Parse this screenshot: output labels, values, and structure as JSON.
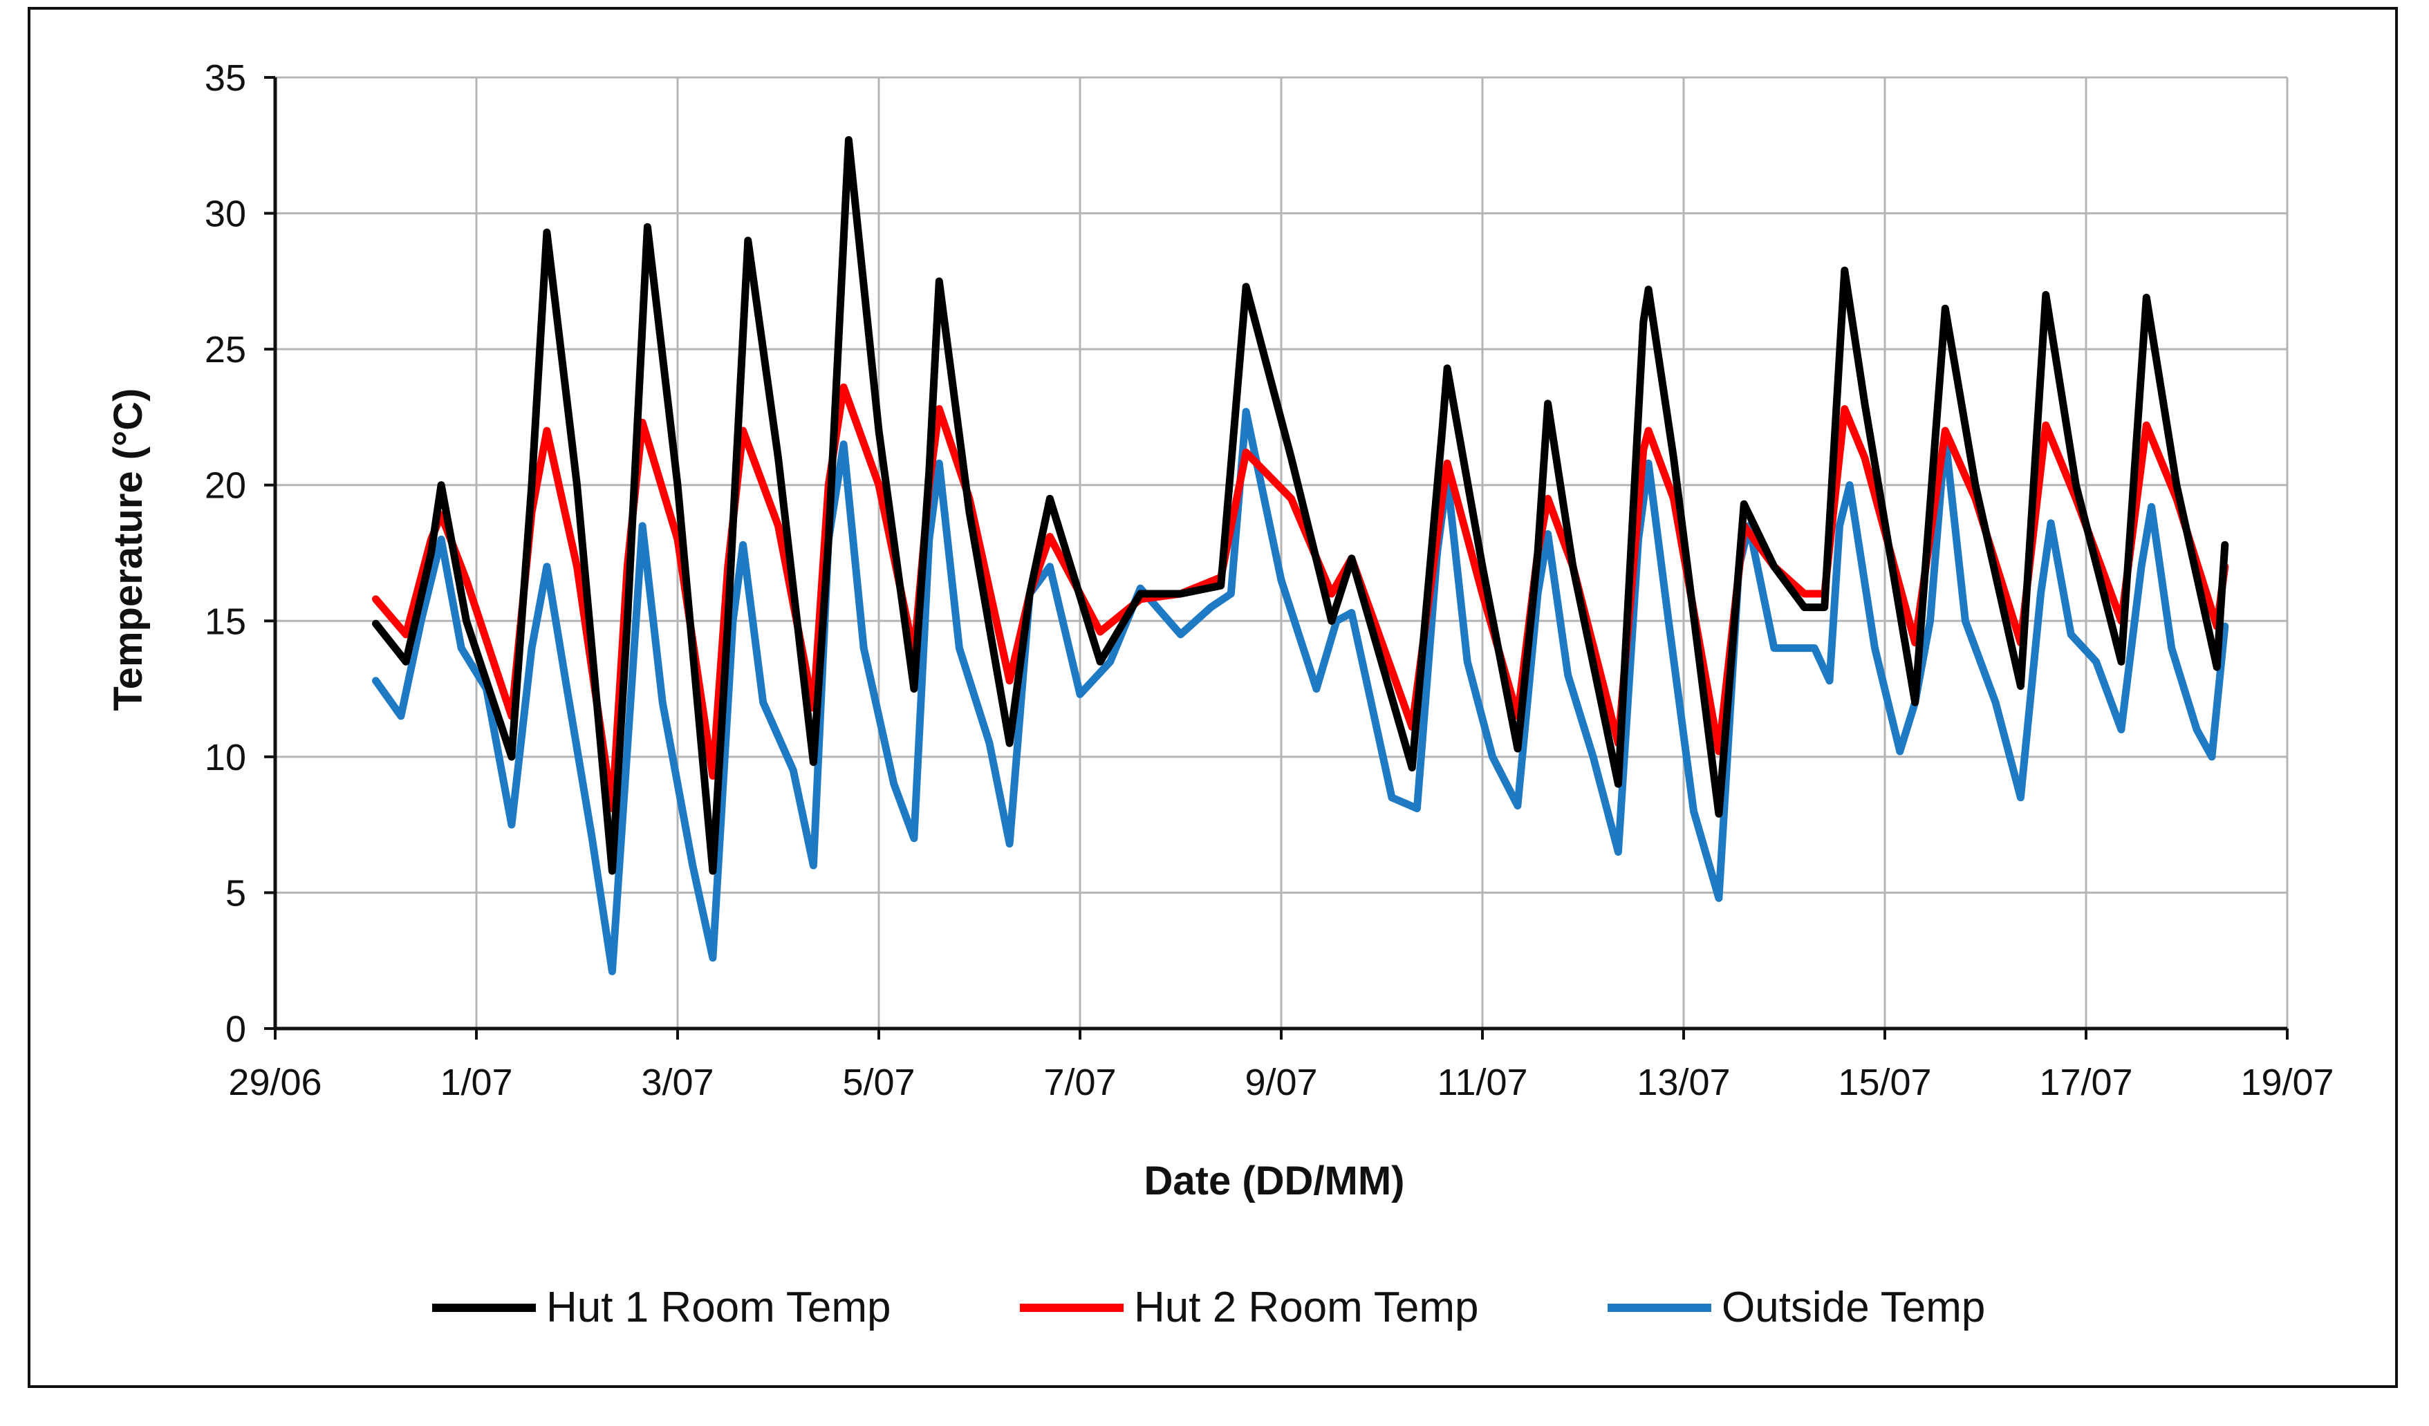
{
  "chart_data": {
    "type": "line",
    "xlabel": "Date (DD/MM)",
    "ylabel": "Temperature (°C)",
    "ylim": [
      0,
      35
    ],
    "yticks": [
      0,
      5,
      10,
      15,
      20,
      25,
      30,
      35
    ],
    "xlim": [
      0,
      20
    ],
    "xticks": [
      {
        "t": 0,
        "label": "29/06"
      },
      {
        "t": 2,
        "label": "1/07"
      },
      {
        "t": 4,
        "label": "3/07"
      },
      {
        "t": 6,
        "label": "5/07"
      },
      {
        "t": 8,
        "label": "7/07"
      },
      {
        "t": 10,
        "label": "9/07"
      },
      {
        "t": 12,
        "label": "11/07"
      },
      {
        "t": 14,
        "label": "13/07"
      },
      {
        "t": 16,
        "label": "15/07"
      },
      {
        "t": 18,
        "label": "17/07"
      },
      {
        "t": 20,
        "label": "19/07"
      }
    ],
    "grid": true,
    "legend_position": "bottom",
    "x_units": "days since 29/06",
    "series": [
      {
        "name": "Hut 1 Room Temp",
        "color": "#000000",
        "points": [
          [
            1.0,
            14.9
          ],
          [
            1.3,
            13.5
          ],
          [
            1.55,
            17.5
          ],
          [
            1.65,
            20.0
          ],
          [
            1.9,
            15.0
          ],
          [
            2.35,
            10.0
          ],
          [
            2.55,
            20.0
          ],
          [
            2.7,
            29.3
          ],
          [
            3.0,
            20.0
          ],
          [
            3.35,
            5.8
          ],
          [
            3.5,
            15.0
          ],
          [
            3.7,
            29.5
          ],
          [
            4.0,
            20.0
          ],
          [
            4.35,
            5.8
          ],
          [
            4.5,
            15.0
          ],
          [
            4.7,
            29.0
          ],
          [
            5.0,
            21.0
          ],
          [
            5.35,
            9.8
          ],
          [
            5.5,
            18.0
          ],
          [
            5.7,
            32.7
          ],
          [
            6.0,
            22.0
          ],
          [
            6.35,
            12.5
          ],
          [
            6.5,
            20.5
          ],
          [
            6.6,
            27.5
          ],
          [
            6.9,
            19.0
          ],
          [
            7.3,
            10.5
          ],
          [
            7.5,
            16.0
          ],
          [
            7.7,
            19.5
          ],
          [
            8.2,
            13.5
          ],
          [
            8.6,
            16.0
          ],
          [
            9.0,
            16.0
          ],
          [
            9.4,
            16.3
          ],
          [
            9.65,
            27.3
          ],
          [
            10.1,
            21.0
          ],
          [
            10.5,
            15.0
          ],
          [
            10.7,
            17.3
          ],
          [
            11.3,
            9.6
          ],
          [
            11.6,
            22.0
          ],
          [
            11.65,
            24.3
          ],
          [
            12.0,
            17.0
          ],
          [
            12.35,
            10.3
          ],
          [
            12.55,
            17.5
          ],
          [
            12.65,
            23.0
          ],
          [
            12.9,
            17.0
          ],
          [
            13.35,
            9.0
          ],
          [
            13.6,
            26.0
          ],
          [
            13.65,
            27.2
          ],
          [
            13.9,
            21.0
          ],
          [
            14.35,
            7.9
          ],
          [
            14.6,
            19.3
          ],
          [
            14.9,
            17.0
          ],
          [
            15.2,
            15.5
          ],
          [
            15.4,
            15.5
          ],
          [
            15.6,
            27.9
          ],
          [
            15.8,
            23.0
          ],
          [
            16.3,
            12.0
          ],
          [
            16.6,
            26.5
          ],
          [
            16.9,
            20.0
          ],
          [
            17.35,
            12.6
          ],
          [
            17.6,
            27.0
          ],
          [
            17.9,
            20.0
          ],
          [
            18.35,
            13.5
          ],
          [
            18.6,
            26.9
          ],
          [
            18.9,
            20.0
          ],
          [
            19.3,
            13.3
          ],
          [
            19.38,
            17.8
          ]
        ]
      },
      {
        "name": "Hut 2 Room Temp",
        "color": "#ff0000",
        "points": [
          [
            1.0,
            15.8
          ],
          [
            1.3,
            14.5
          ],
          [
            1.55,
            18.0
          ],
          [
            1.65,
            18.9
          ],
          [
            1.9,
            16.5
          ],
          [
            2.35,
            11.5
          ],
          [
            2.55,
            19.0
          ],
          [
            2.7,
            22.0
          ],
          [
            3.0,
            17.0
          ],
          [
            3.35,
            8.1
          ],
          [
            3.5,
            17.0
          ],
          [
            3.65,
            22.3
          ],
          [
            4.0,
            18.0
          ],
          [
            4.35,
            9.3
          ],
          [
            4.5,
            17.0
          ],
          [
            4.65,
            22.0
          ],
          [
            5.0,
            18.5
          ],
          [
            5.35,
            11.8
          ],
          [
            5.5,
            20.0
          ],
          [
            5.65,
            23.6
          ],
          [
            6.0,
            20.0
          ],
          [
            6.35,
            13.8
          ],
          [
            6.5,
            20.0
          ],
          [
            6.6,
            22.8
          ],
          [
            6.9,
            19.5
          ],
          [
            7.3,
            12.8
          ],
          [
            7.5,
            16.0
          ],
          [
            7.7,
            18.1
          ],
          [
            8.2,
            14.6
          ],
          [
            8.6,
            15.8
          ],
          [
            9.0,
            16.0
          ],
          [
            9.4,
            16.6
          ],
          [
            9.65,
            21.2
          ],
          [
            10.1,
            19.5
          ],
          [
            10.5,
            16.0
          ],
          [
            10.7,
            17.3
          ],
          [
            11.3,
            11.1
          ],
          [
            11.6,
            19.5
          ],
          [
            11.65,
            20.8
          ],
          [
            12.0,
            16.0
          ],
          [
            12.35,
            11.5
          ],
          [
            12.55,
            17.5
          ],
          [
            12.65,
            19.5
          ],
          [
            12.9,
            17.0
          ],
          [
            13.35,
            10.5
          ],
          [
            13.6,
            21.3
          ],
          [
            13.65,
            22.0
          ],
          [
            13.9,
            19.5
          ],
          [
            14.35,
            10.2
          ],
          [
            14.6,
            18.5
          ],
          [
            14.9,
            17.0
          ],
          [
            15.2,
            16.0
          ],
          [
            15.4,
            16.0
          ],
          [
            15.6,
            22.8
          ],
          [
            15.8,
            21.0
          ],
          [
            16.3,
            14.2
          ],
          [
            16.6,
            22.0
          ],
          [
            16.9,
            19.5
          ],
          [
            17.35,
            14.2
          ],
          [
            17.6,
            22.2
          ],
          [
            17.9,
            19.5
          ],
          [
            18.35,
            15.0
          ],
          [
            18.6,
            22.2
          ],
          [
            18.9,
            19.5
          ],
          [
            19.3,
            14.8
          ],
          [
            19.38,
            17.0
          ]
        ]
      },
      {
        "name": "Outside Temp",
        "color": "#1f7ac4",
        "points": [
          [
            1.0,
            12.8
          ],
          [
            1.25,
            11.5
          ],
          [
            1.45,
            15.0
          ],
          [
            1.65,
            18.0
          ],
          [
            1.85,
            14.0
          ],
          [
            2.1,
            12.5
          ],
          [
            2.35,
            7.5
          ],
          [
            2.55,
            14.0
          ],
          [
            2.7,
            17.0
          ],
          [
            2.9,
            12.5
          ],
          [
            3.15,
            7.0
          ],
          [
            3.35,
            2.1
          ],
          [
            3.55,
            13.0
          ],
          [
            3.65,
            18.5
          ],
          [
            3.85,
            12.0
          ],
          [
            4.15,
            6.0
          ],
          [
            4.35,
            2.6
          ],
          [
            4.55,
            15.0
          ],
          [
            4.65,
            17.8
          ],
          [
            4.85,
            12.0
          ],
          [
            5.15,
            9.5
          ],
          [
            5.35,
            6.0
          ],
          [
            5.5,
            18.0
          ],
          [
            5.65,
            21.5
          ],
          [
            5.85,
            14.0
          ],
          [
            6.15,
            9.0
          ],
          [
            6.35,
            7.0
          ],
          [
            6.5,
            18.0
          ],
          [
            6.6,
            20.8
          ],
          [
            6.8,
            14.0
          ],
          [
            7.1,
            10.5
          ],
          [
            7.3,
            6.8
          ],
          [
            7.5,
            16.0
          ],
          [
            7.7,
            17.0
          ],
          [
            8.0,
            12.3
          ],
          [
            8.3,
            13.5
          ],
          [
            8.6,
            16.2
          ],
          [
            9.0,
            14.5
          ],
          [
            9.3,
            15.5
          ],
          [
            9.5,
            16.0
          ],
          [
            9.65,
            22.7
          ],
          [
            10.0,
            16.5
          ],
          [
            10.35,
            12.5
          ],
          [
            10.55,
            15.0
          ],
          [
            10.7,
            15.3
          ],
          [
            11.1,
            8.5
          ],
          [
            11.35,
            8.1
          ],
          [
            11.55,
            17.5
          ],
          [
            11.65,
            20.3
          ],
          [
            11.85,
            13.5
          ],
          [
            12.1,
            10.0
          ],
          [
            12.35,
            8.2
          ],
          [
            12.55,
            16.0
          ],
          [
            12.65,
            18.2
          ],
          [
            12.85,
            13.0
          ],
          [
            13.1,
            10.0
          ],
          [
            13.35,
            6.5
          ],
          [
            13.55,
            18.0
          ],
          [
            13.65,
            20.8
          ],
          [
            13.85,
            15.0
          ],
          [
            14.1,
            8.0
          ],
          [
            14.35,
            4.8
          ],
          [
            14.55,
            17.0
          ],
          [
            14.65,
            18.5
          ],
          [
            14.9,
            14.0
          ],
          [
            15.3,
            14.0
          ],
          [
            15.45,
            12.8
          ],
          [
            15.55,
            18.5
          ],
          [
            15.65,
            20.0
          ],
          [
            15.9,
            14.0
          ],
          [
            16.15,
            10.2
          ],
          [
            16.3,
            12.0
          ],
          [
            16.45,
            15.0
          ],
          [
            16.6,
            21.8
          ],
          [
            16.8,
            15.0
          ],
          [
            17.1,
            12.0
          ],
          [
            17.35,
            8.5
          ],
          [
            17.55,
            16.0
          ],
          [
            17.65,
            18.6
          ],
          [
            17.85,
            14.5
          ],
          [
            18.1,
            13.5
          ],
          [
            18.35,
            11.0
          ],
          [
            18.55,
            17.0
          ],
          [
            18.65,
            19.2
          ],
          [
            18.85,
            14.0
          ],
          [
            19.1,
            11.0
          ],
          [
            19.25,
            10.0
          ],
          [
            19.38,
            14.8
          ]
        ]
      }
    ]
  }
}
